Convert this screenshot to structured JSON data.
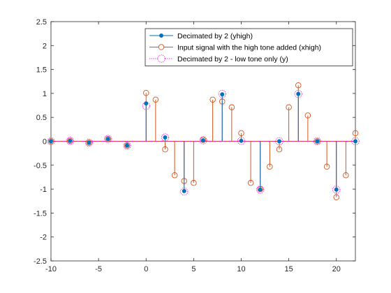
{
  "chart_data": {
    "type": "stem",
    "xlim": [
      -10,
      22
    ],
    "ylim": [
      -2.5,
      2.5
    ],
    "xticks": [
      -10,
      -5,
      0,
      5,
      10,
      15,
      20
    ],
    "yticks": [
      -2.5,
      -2,
      -1.5,
      -1,
      -0.5,
      0,
      0.5,
      1,
      1.5,
      2,
      2.5
    ],
    "xtick_labels": [
      "-10",
      "-5",
      "0",
      "5",
      "10",
      "15",
      "20"
    ],
    "ytick_labels": [
      "-2.5",
      "-2",
      "-1.5",
      "-1",
      "-0.5",
      "0",
      "0.5",
      "1",
      "1.5",
      "2",
      "2.5"
    ],
    "grid": false,
    "legend_location": "top-right",
    "series": [
      {
        "name": "Decimated by 2 (yhigh)",
        "style": "stem-filled-dot",
        "color": "#0072BD",
        "x": [
          -10,
          -8,
          -6,
          -4,
          -2,
          0,
          2,
          4,
          6,
          8,
          10,
          12,
          14,
          16,
          18,
          20,
          22
        ],
        "y": [
          0,
          0.01,
          -0.03,
          0.05,
          -0.09,
          0.79,
          0.08,
          -1.04,
          0.02,
          0.98,
          0.01,
          -1.01,
          0,
          0.99,
          0,
          -1.01,
          0
        ]
      },
      {
        "name": "Input signal with the high tone added (xhigh)",
        "style": "stem-open-circle",
        "color": "#D95319",
        "x": [
          -10,
          -8,
          -6,
          -4,
          -2,
          0,
          1,
          2,
          3,
          4,
          5,
          6,
          7,
          8,
          9,
          10,
          11,
          12,
          13,
          14,
          15,
          16,
          17,
          18,
          19,
          20,
          21,
          22
        ],
        "y": [
          0,
          0.01,
          -0.03,
          0.05,
          -0.09,
          1.01,
          0.87,
          -0.17,
          -0.71,
          -0.83,
          -0.87,
          0.03,
          0.87,
          0.83,
          0.71,
          0.17,
          -0.87,
          -1.0,
          -0.53,
          -0.17,
          0.71,
          1.17,
          0.54,
          0,
          -0.53,
          -1.17,
          -0.71,
          0.17
        ]
      },
      {
        "name": "Decimated by 2 - low tone only (y)",
        "style": "stem-dotted-circle",
        "color": "#FF00FF",
        "x": [
          -10,
          -8,
          -6,
          -4,
          -2,
          0,
          2,
          4,
          6,
          8,
          10,
          12,
          14,
          16,
          18,
          20,
          22
        ],
        "y": [
          0,
          0.01,
          -0.03,
          0.05,
          -0.09,
          0.74,
          0.08,
          -1.05,
          0.02,
          0.99,
          0.01,
          -1.01,
          0,
          0.99,
          0,
          -1.01,
          0
        ]
      }
    ]
  }
}
